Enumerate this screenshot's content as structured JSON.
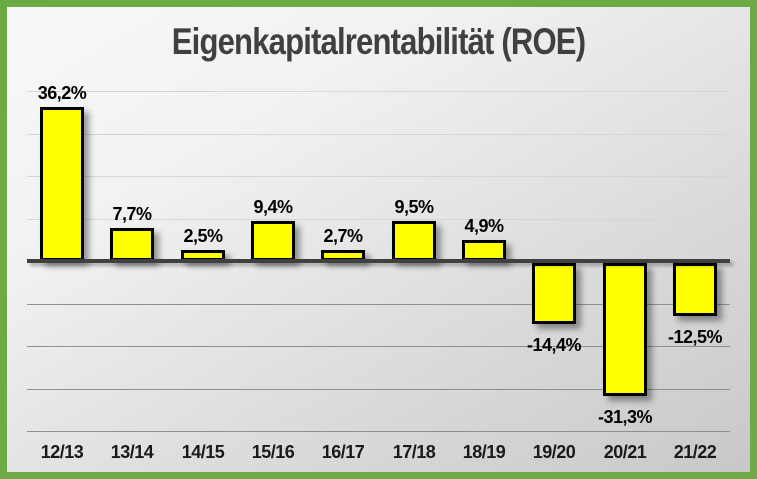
{
  "title": "Eigenkapitalrentabilität (ROE)",
  "chart_data": {
    "type": "bar",
    "title": "Eigenkapitalrentabilität (ROE)",
    "categories": [
      "12/13",
      "13/14",
      "14/15",
      "15/16",
      "16/17",
      "17/18",
      "18/19",
      "19/20",
      "20/21",
      "21/22"
    ],
    "values": [
      36.2,
      7.7,
      2.5,
      9.4,
      2.7,
      9.5,
      4.9,
      -14.4,
      -31.3,
      -12.5
    ],
    "value_labels": [
      "36,2%",
      "7,7%",
      "2,5%",
      "9,4%",
      "2,7%",
      "9,5%",
      "4,9%",
      "-14,4%",
      "-31,3%",
      "-12,5%"
    ],
    "xlabel": "",
    "ylabel": "",
    "ylim": [
      -40,
      40
    ],
    "gridline_step": 10,
    "grid": true,
    "legend": "none",
    "series_name": "ROE"
  },
  "colors": {
    "frame_border": "#6CAB44",
    "title_text": "#404040",
    "bar_fill": "#FFFF00",
    "bar_border": "#000000",
    "axis_line": "#404040",
    "gridline_upper": "#D6D6D6",
    "gridline_lower": "#8F8F8F",
    "value_label_text": "#000000",
    "x_label_text": "#1A1A1A"
  }
}
